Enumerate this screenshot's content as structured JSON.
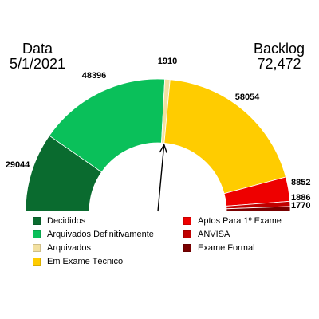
{
  "header": {
    "date_label": "Data",
    "date_value": "5/1/2021",
    "backlog_label": "Backlog",
    "backlog_value": "72,472"
  },
  "chart_data": {
    "type": "gauge-donut",
    "title": "",
    "total": 72472,
    "pointer_category": "Em Exame Técnico",
    "segments": [
      {
        "name": "Decididos",
        "value": 29044,
        "label": "29044",
        "color": "#0a6b2f"
      },
      {
        "name": "Arquivados Definitivamente",
        "value": 48396,
        "label": "48396",
        "color": "#0ac05a"
      },
      {
        "name": "Arquivados",
        "value": 1910,
        "label": "1910",
        "color": "#f2e0a0"
      },
      {
        "name": "Em Exame Técnico",
        "value": 58054,
        "label": "58054",
        "color": "#ffcc00"
      },
      {
        "name": "Aptos Para 1º Exame",
        "value": 8852,
        "label": "8852",
        "color": "#ee0000"
      },
      {
        "name": "ANVISA",
        "value": 1886,
        "label": "1886",
        "color": "#c00000"
      },
      {
        "name": "Exame Formal",
        "value": 1770,
        "label": "1770",
        "color": "#7a0000"
      }
    ]
  },
  "legend": {
    "left": [
      {
        "label": "Decididos",
        "color": "#0a6b2f"
      },
      {
        "label": "Arquivados Definitivamente",
        "color": "#0ac05a"
      },
      {
        "label": "Arquivados",
        "color": "#f2e0a0"
      },
      {
        "label": "Em Exame Técnico",
        "color": "#ffcc00"
      }
    ],
    "right": [
      {
        "label": "Aptos Para 1º Exame",
        "color": "#ee0000"
      },
      {
        "label": "ANVISA",
        "color": "#c00000"
      },
      {
        "label": "Exame Formal",
        "color": "#7a0000"
      }
    ]
  }
}
